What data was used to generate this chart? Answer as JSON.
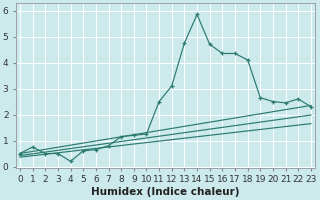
{
  "title": "",
  "xlabel": "Humidex (Indice chaleur)",
  "background_color": "#cce9ec",
  "plot_color": "#2a7a6e",
  "x_main": [
    0,
    1,
    2,
    3,
    4,
    5,
    6,
    7,
    8,
    9,
    10,
    11,
    12,
    13,
    14,
    15,
    16,
    17,
    18,
    19,
    20,
    21,
    22,
    23
  ],
  "y_main": [
    0.5,
    0.75,
    0.5,
    0.5,
    0.2,
    0.6,
    0.65,
    0.8,
    1.15,
    1.2,
    1.25,
    2.5,
    3.1,
    4.75,
    5.85,
    4.7,
    4.35,
    4.35,
    4.1,
    2.65,
    2.5,
    2.45,
    2.6,
    2.3
  ],
  "x_line1_start": 0,
  "y_line1_start": 0.5,
  "x_line1_end": 23,
  "y_line1_end": 2.35,
  "x_line2_start": 0,
  "y_line2_start": 0.42,
  "x_line2_end": 23,
  "y_line2_end": 1.98,
  "x_line3_start": 0,
  "y_line3_start": 0.36,
  "x_line3_end": 23,
  "y_line3_end": 1.65,
  "xlim": [
    -0.3,
    23.3
  ],
  "ylim": [
    -0.05,
    6.3
  ],
  "xticks": [
    0,
    1,
    2,
    3,
    4,
    5,
    6,
    7,
    8,
    9,
    10,
    11,
    12,
    13,
    14,
    15,
    16,
    17,
    18,
    19,
    20,
    21,
    22,
    23
  ],
  "yticks": [
    0,
    1,
    2,
    3,
    4,
    5,
    6
  ],
  "tick_fontsize": 6.5,
  "xlabel_fontsize": 7.5,
  "grid_color": "#b8d8db",
  "spine_color": "#888888"
}
